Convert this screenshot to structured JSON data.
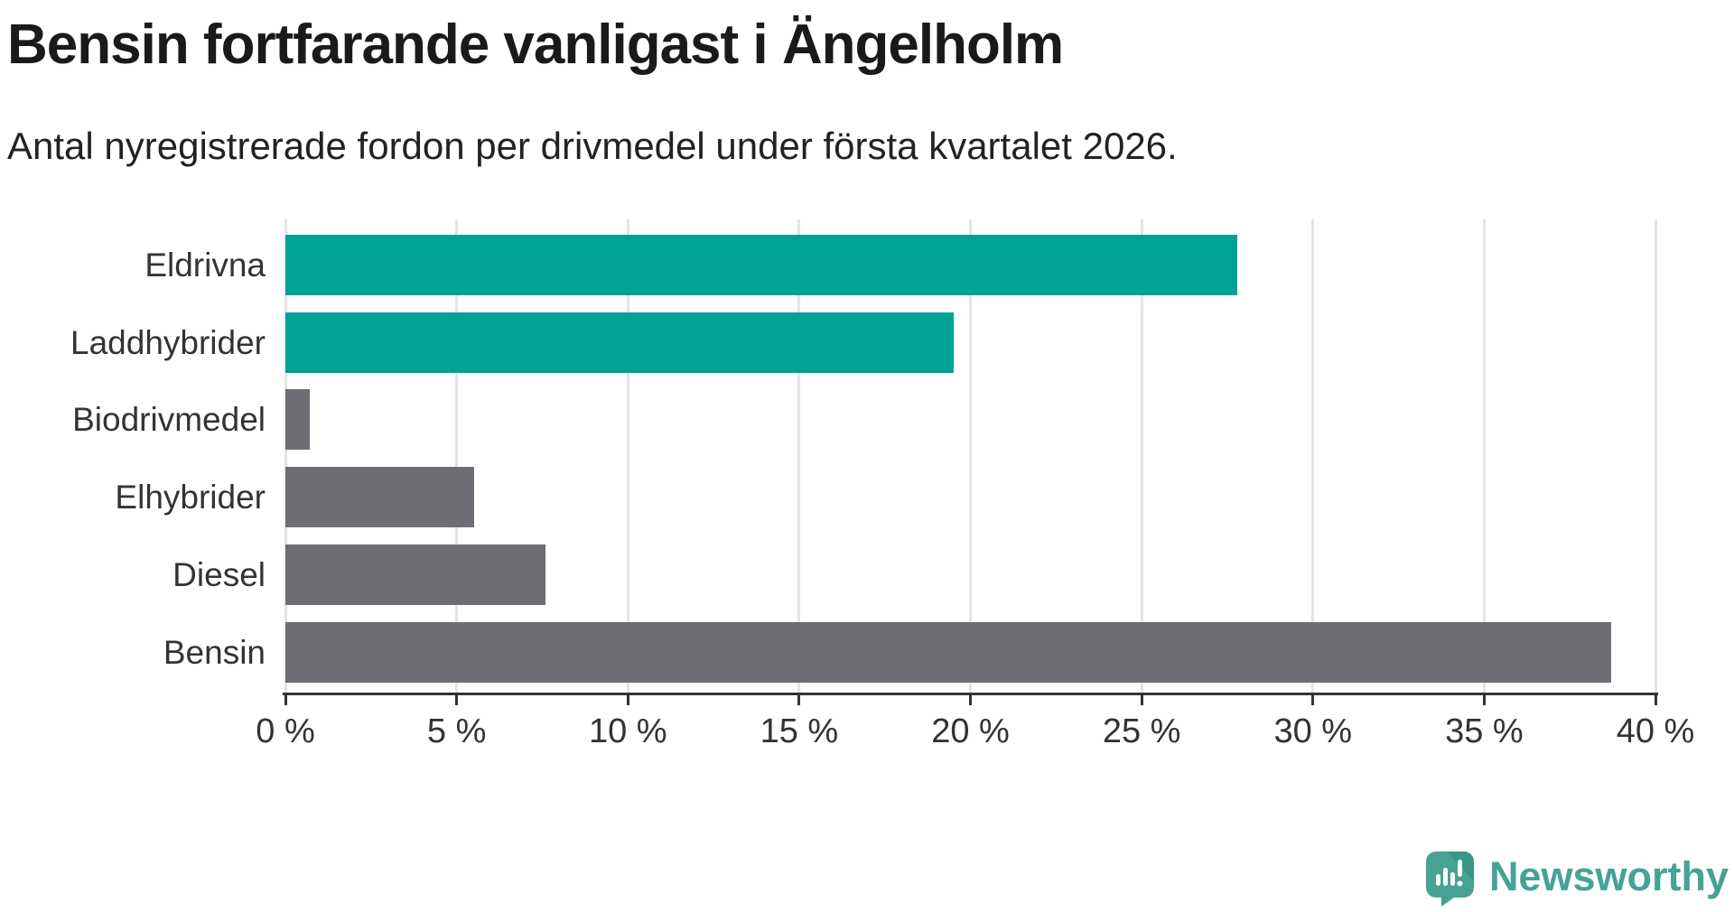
{
  "title": "Bensin fortfarande vanligast i Ängelholm",
  "subtitle": "Antal nyregistrerade fordon per drivmedel under första kvartalet 2026.",
  "colors": {
    "highlight_teal": "#00a296",
    "neutral_gray": "#6d6d73",
    "gridline": "#e4e4e4",
    "axis": "#333333",
    "label_text": "#333333",
    "title_text": "#1a1a1a",
    "logo_teal": "#45a294",
    "logo_teal_dark": "#38968a"
  },
  "chart_data": {
    "type": "bar",
    "orientation": "horizontal",
    "title": "Bensin fortfarande vanligast i Ängelholm",
    "subtitle": "Antal nyregistrerade fordon per drivmedel under första kvartalet 2026.",
    "categories": [
      "Eldrivna",
      "Laddhybrider",
      "Biodrivmedel",
      "Elhybrider",
      "Diesel",
      "Bensin"
    ],
    "values": [
      27.8,
      19.5,
      0.7,
      5.5,
      7.6,
      38.7
    ],
    "unit": "%",
    "bar_colors": [
      "#00a296",
      "#00a296",
      "#6d6d73",
      "#6d6d73",
      "#6d6d73",
      "#6d6d73"
    ],
    "xlim": [
      0,
      40
    ],
    "x_ticks": [
      0,
      5,
      10,
      15,
      20,
      25,
      30,
      35,
      40
    ],
    "x_tick_labels": [
      "0 %",
      "5 %",
      "10 %",
      "15 %",
      "20 %",
      "25 %",
      "30 %",
      "35 %",
      "40 %"
    ],
    "grid": true,
    "legend": false
  },
  "branding": {
    "logo_text": "Newsworthy",
    "logo_icon": "newsworthy-speech-bubble-chart-icon"
  }
}
